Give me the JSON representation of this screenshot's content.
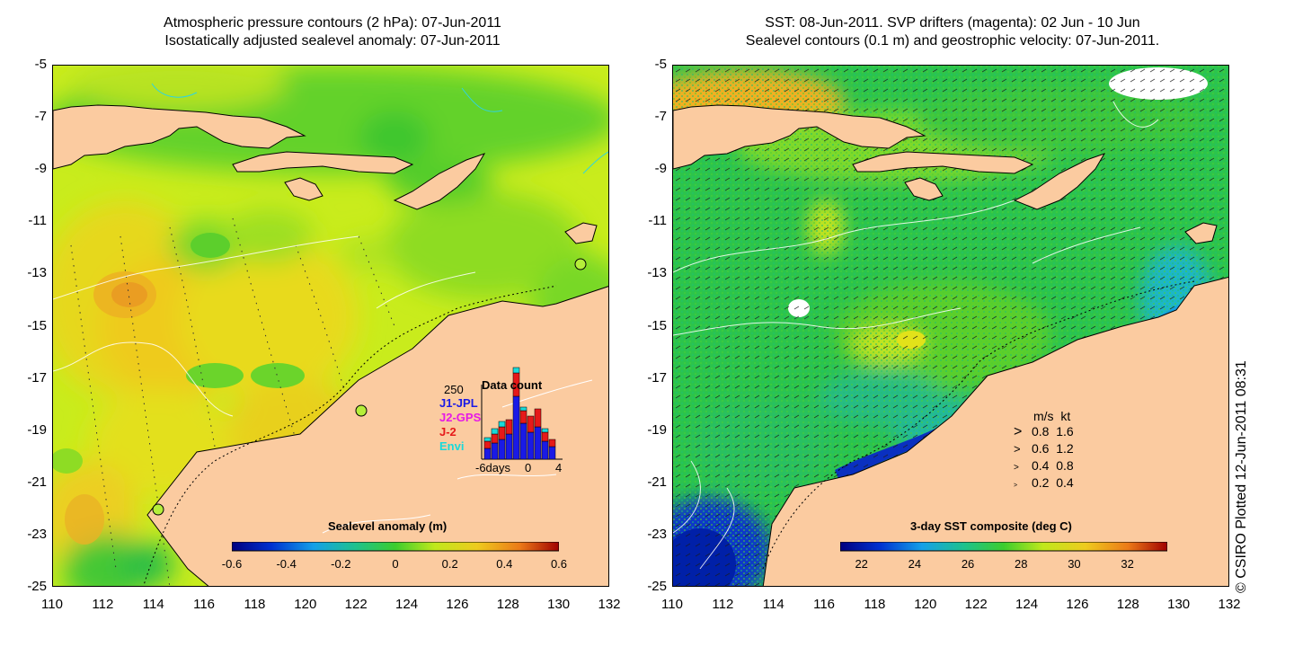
{
  "left_panel": {
    "title_line1": "Atmospheric pressure contours (2 hPa): 07-Jun-2011",
    "title_line2": "Isostatically adjusted sealevel anomaly: 07-Jun-2011",
    "colorbar": {
      "title": "Sealevel anomaly (m)",
      "ticks": [
        "-0.6",
        "-0.4",
        "-0.2",
        "0",
        "0.2",
        "0.4",
        "0.6"
      ],
      "range": [
        -0.6,
        0.6
      ]
    },
    "data_count_inset": {
      "title": "Data count",
      "ymax_label": "250",
      "missions": [
        {
          "name": "J1-JPL",
          "color": "#1a1ae6"
        },
        {
          "name": "J2-GPS",
          "color": "#e619e6"
        },
        {
          "name": "J-2",
          "color": "#e61919"
        },
        {
          "name": "Envi",
          "color": "#19d9d9"
        }
      ],
      "x_labels": [
        "-6days",
        "0",
        "4"
      ]
    },
    "tide_gauge_markers": 3
  },
  "right_panel": {
    "title_line1": "SST: 08-Jun-2011. SVP drifters (magenta): 02 Jun - 10 Jun",
    "title_line2": "Sealevel contours (0.1 m) and geostrophic velocity: 07-Jun-2011.",
    "colorbar": {
      "title": "3-day SST composite (deg C)",
      "ticks": [
        "22",
        "24",
        "26",
        "28",
        "30",
        "32"
      ],
      "range": [
        21.2,
        33.5
      ]
    },
    "velocity_legend": {
      "header_ms": "m/s",
      "header_kt": "kt",
      "rows": [
        {
          "ms": "0.8",
          "kt": "1.6"
        },
        {
          "ms": "0.6",
          "kt": "1.2"
        },
        {
          "ms": "0.4",
          "kt": "0.8"
        },
        {
          "ms": "0.2",
          "kt": "0.4"
        }
      ]
    }
  },
  "axes": {
    "lon_ticks": [
      "110",
      "112",
      "114",
      "116",
      "118",
      "120",
      "122",
      "124",
      "126",
      "128",
      "130",
      "132"
    ],
    "lat_ticks": [
      "-5",
      "-7",
      "-9",
      "-11",
      "-13",
      "-15",
      "-17",
      "-19",
      "-21",
      "-23",
      "-25"
    ],
    "lon_range": [
      110,
      132
    ],
    "lat_range": [
      -25,
      -5
    ]
  },
  "credit": "© CSIRO Plotted 12-Jun-2011 08:31",
  "colors": {
    "land": "#fbcba0",
    "coastline": "#000000",
    "land_contour": "#2fd4e0",
    "sea_contour": "#ffffff"
  }
}
